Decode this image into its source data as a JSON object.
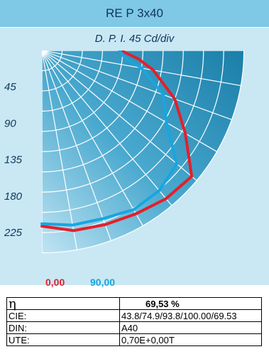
{
  "header": {
    "title": "RE P  3x40",
    "subtitle": "D. P. I. 45 Cd/div"
  },
  "chart_data": {
    "type": "polar-line",
    "title": "RE P  3x40",
    "subtitle": "D. P. I. 45 Cd/div",
    "radial_tick_labels": [
      "45",
      "90",
      "135",
      "180",
      "225"
    ],
    "radial_ticks": [
      45,
      90,
      135,
      180,
      225
    ],
    "rmax": 250,
    "angular_step_deg": 10,
    "angle_range_deg": [
      0,
      90
    ],
    "grid": true,
    "series": [
      {
        "name": "0,00",
        "color": "#e3202a",
        "points": [
          [
            0,
            217
          ],
          [
            10,
            226
          ],
          [
            20,
            229
          ],
          [
            30,
            233
          ],
          [
            40,
            239
          ],
          [
            50,
            242
          ],
          [
            60,
            205
          ],
          [
            70,
            175
          ],
          [
            80,
            140
          ],
          [
            85,
            120
          ],
          [
            90,
            98
          ]
        ]
      },
      {
        "name": "90,00",
        "color": "#18a6e0",
        "points": [
          [
            0,
            214
          ],
          [
            10,
            219
          ],
          [
            20,
            221
          ],
          [
            30,
            227
          ],
          [
            40,
            226
          ],
          [
            50,
            218
          ],
          [
            60,
            178
          ],
          [
            70,
            160
          ],
          [
            80,
            125
          ],
          [
            85,
            103
          ],
          [
            90,
            96
          ]
        ]
      }
    ]
  },
  "table": {
    "rows": [
      {
        "label": "η",
        "value": "69,53 %"
      },
      {
        "label": "CIE:",
        "value": "43.8/74.9/93.8/100.00/69.53"
      },
      {
        "label": "DIN:",
        "value": "A40"
      },
      {
        "label": "UTE:",
        "value": "0,70E+0,00T"
      }
    ]
  }
}
